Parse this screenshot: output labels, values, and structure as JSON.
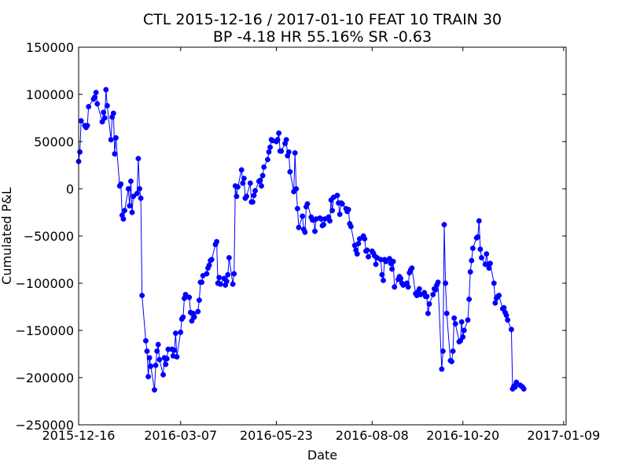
{
  "chart_data": {
    "type": "line",
    "title": "CTL 2015-12-16 / 2017-01-10 FEAT 10 TRAIN 30",
    "subtitle": "BP -4.18 HR 55.16%  SR -0.63",
    "xlabel": "Date",
    "ylabel": "Cumulated P&L",
    "xlim": [
      "2015-12-16",
      "2017-01-11"
    ],
    "ylim": [
      -250000,
      150000
    ],
    "x_ticks": [
      "2015-12-16",
      "2016-03-07",
      "2016-05-23",
      "2016-08-08",
      "2016-10-20",
      "2017-01-09"
    ],
    "y_ticks": [
      -250000,
      -200000,
      -150000,
      -100000,
      -50000,
      0,
      50000,
      100000,
      150000
    ],
    "y_tick_labels": [
      "−250000",
      "−200000",
      "−150000",
      "−100000",
      "−50000",
      "0",
      "50000",
      "100000",
      "150000"
    ],
    "grid": false,
    "series": [
      {
        "color": "#0000ff",
        "marker": "circle",
        "points": [
          [
            "2015-12-16",
            29000
          ],
          [
            "2015-12-17",
            39000
          ],
          [
            "2015-12-18",
            72000
          ],
          [
            "2015-12-21",
            67000
          ],
          [
            "2015-12-22",
            65000
          ],
          [
            "2015-12-23",
            67000
          ],
          [
            "2015-12-24",
            87000
          ],
          [
            "2015-12-28",
            95000
          ],
          [
            "2015-12-29",
            97000
          ],
          [
            "2015-12-30",
            102000
          ],
          [
            "2015-12-31",
            90000
          ],
          [
            "2016-01-04",
            71000
          ],
          [
            "2016-01-05",
            81000
          ],
          [
            "2016-01-06",
            75000
          ],
          [
            "2016-01-07",
            105000
          ],
          [
            "2016-01-08",
            88000
          ],
          [
            "2016-01-11",
            52000
          ],
          [
            "2016-01-12",
            76000
          ],
          [
            "2016-01-13",
            80000
          ],
          [
            "2016-01-14",
            37000
          ],
          [
            "2016-01-15",
            54000
          ],
          [
            "2016-01-18",
            3000
          ],
          [
            "2016-01-19",
            5000
          ],
          [
            "2016-01-20",
            -28000
          ],
          [
            "2016-01-21",
            -32000
          ],
          [
            "2016-01-22",
            -23000
          ],
          [
            "2016-01-25",
            0
          ],
          [
            "2016-01-26",
            -18000
          ],
          [
            "2016-01-27",
            8000
          ],
          [
            "2016-01-28",
            -25000
          ],
          [
            "2016-01-29",
            -8000
          ],
          [
            "2016-02-01",
            -5000
          ],
          [
            "2016-02-02",
            32000
          ],
          [
            "2016-02-03",
            0
          ],
          [
            "2016-02-04",
            -10000
          ],
          [
            "2016-02-05",
            -113000
          ],
          [
            "2016-02-08",
            -161000
          ],
          [
            "2016-02-09",
            -172000
          ],
          [
            "2016-02-10",
            -199000
          ],
          [
            "2016-02-11",
            -179000
          ],
          [
            "2016-02-12",
            -188000
          ],
          [
            "2016-02-15",
            -213000
          ],
          [
            "2016-02-16",
            -187000
          ],
          [
            "2016-02-17",
            -172000
          ],
          [
            "2016-02-18",
            -165000
          ],
          [
            "2016-02-19",
            -181000
          ],
          [
            "2016-02-22",
            -197000
          ],
          [
            "2016-02-23",
            -179000
          ],
          [
            "2016-02-24",
            -186000
          ],
          [
            "2016-02-25",
            -180000
          ],
          [
            "2016-02-26",
            -170000
          ],
          [
            "2016-02-29",
            -170000
          ],
          [
            "2016-03-01",
            -177000
          ],
          [
            "2016-03-02",
            -171000
          ],
          [
            "2016-03-03",
            -153000
          ],
          [
            "2016-03-04",
            -178000
          ],
          [
            "2016-03-07",
            -152000
          ],
          [
            "2016-03-08",
            -138000
          ],
          [
            "2016-03-09",
            -136000
          ],
          [
            "2016-03-10",
            -116000
          ],
          [
            "2016-03-11",
            -112000
          ],
          [
            "2016-03-14",
            -115000
          ],
          [
            "2016-03-15",
            -131000
          ],
          [
            "2016-03-16",
            -140000
          ],
          [
            "2016-03-17",
            -132000
          ],
          [
            "2016-03-18",
            -136000
          ],
          [
            "2016-03-21",
            -130000
          ],
          [
            "2016-03-22",
            -118000
          ],
          [
            "2016-03-23",
            -99000
          ],
          [
            "2016-03-24",
            -99000
          ],
          [
            "2016-03-25",
            -92000
          ],
          [
            "2016-03-28",
            -90000
          ],
          [
            "2016-03-29",
            -84000
          ],
          [
            "2016-03-30",
            -81000
          ],
          [
            "2016-03-31",
            -76000
          ],
          [
            "2016-04-01",
            -75000
          ],
          [
            "2016-04-04",
            -59000
          ],
          [
            "2016-04-05",
            -56000
          ],
          [
            "2016-04-06",
            -100000
          ],
          [
            "2016-04-07",
            -94000
          ],
          [
            "2016-04-08",
            -101000
          ],
          [
            "2016-04-11",
            -95000
          ],
          [
            "2016-04-12",
            -102000
          ],
          [
            "2016-04-13",
            -98000
          ],
          [
            "2016-04-14",
            -91000
          ],
          [
            "2016-04-15",
            -73000
          ],
          [
            "2016-04-18",
            -101000
          ],
          [
            "2016-04-19",
            -90000
          ],
          [
            "2016-04-20",
            3000
          ],
          [
            "2016-04-21",
            -8000
          ],
          [
            "2016-04-22",
            2000
          ],
          [
            "2016-04-25",
            20000
          ],
          [
            "2016-04-26",
            6000
          ],
          [
            "2016-04-27",
            11000
          ],
          [
            "2016-04-28",
            -10000
          ],
          [
            "2016-04-29",
            -8000
          ],
          [
            "2016-05-02",
            6000
          ],
          [
            "2016-05-03",
            -14000
          ],
          [
            "2016-05-04",
            -14000
          ],
          [
            "2016-05-05",
            -7000
          ],
          [
            "2016-05-06",
            -2000
          ],
          [
            "2016-05-09",
            8000
          ],
          [
            "2016-05-10",
            9000
          ],
          [
            "2016-05-11",
            3000
          ],
          [
            "2016-05-12",
            14000
          ],
          [
            "2016-05-13",
            23000
          ],
          [
            "2016-05-16",
            31000
          ],
          [
            "2016-05-17",
            39000
          ],
          [
            "2016-05-18",
            44000
          ],
          [
            "2016-05-19",
            52000
          ],
          [
            "2016-05-20",
            51000
          ],
          [
            "2016-05-23",
            50000
          ],
          [
            "2016-05-24",
            52000
          ],
          [
            "2016-05-25",
            59000
          ],
          [
            "2016-05-26",
            40000
          ],
          [
            "2016-05-27",
            40000
          ],
          [
            "2016-05-30",
            48000
          ],
          [
            "2016-05-31",
            52000
          ],
          [
            "2016-06-01",
            35000
          ],
          [
            "2016-06-02",
            39000
          ],
          [
            "2016-06-03",
            18000
          ],
          [
            "2016-06-06",
            -3000
          ],
          [
            "2016-06-07",
            38000
          ],
          [
            "2016-06-08",
            0
          ],
          [
            "2016-06-09",
            -21000
          ],
          [
            "2016-06-10",
            -41000
          ],
          [
            "2016-06-13",
            -29000
          ],
          [
            "2016-06-14",
            -43000
          ],
          [
            "2016-06-15",
            -46000
          ],
          [
            "2016-06-16",
            -19000
          ],
          [
            "2016-06-17",
            -16000
          ],
          [
            "2016-06-20",
            -30000
          ],
          [
            "2016-06-21",
            -33000
          ],
          [
            "2016-06-22",
            -33000
          ],
          [
            "2016-06-23",
            -45000
          ],
          [
            "2016-06-24",
            -32000
          ],
          [
            "2016-06-27",
            -31000
          ],
          [
            "2016-06-28",
            -32000
          ],
          [
            "2016-06-29",
            -39000
          ],
          [
            "2016-06-30",
            -38000
          ],
          [
            "2016-07-01",
            -32000
          ],
          [
            "2016-07-04",
            -30000
          ],
          [
            "2016-07-05",
            -34000
          ],
          [
            "2016-07-06",
            -12000
          ],
          [
            "2016-07-07",
            -23000
          ],
          [
            "2016-07-08",
            -9000
          ],
          [
            "2016-07-11",
            -7000
          ],
          [
            "2016-07-12",
            -15000
          ],
          [
            "2016-07-13",
            -27000
          ],
          [
            "2016-07-14",
            -15000
          ],
          [
            "2016-07-15",
            -16000
          ],
          [
            "2016-07-18",
            -21000
          ],
          [
            "2016-07-19",
            -24000
          ],
          [
            "2016-07-20",
            -22000
          ],
          [
            "2016-07-21",
            -37000
          ],
          [
            "2016-07-22",
            -40000
          ],
          [
            "2016-07-25",
            -60000
          ],
          [
            "2016-07-26",
            -65000
          ],
          [
            "2016-07-27",
            -69000
          ],
          [
            "2016-07-28",
            -58000
          ],
          [
            "2016-07-29",
            -53000
          ],
          [
            "2016-08-01",
            -50000
          ],
          [
            "2016-08-02",
            -53000
          ],
          [
            "2016-08-03",
            -66000
          ],
          [
            "2016-08-04",
            -65000
          ],
          [
            "2016-08-05",
            -72000
          ],
          [
            "2016-08-08",
            -66000
          ],
          [
            "2016-08-09",
            -68000
          ],
          [
            "2016-08-10",
            -71000
          ],
          [
            "2016-08-11",
            -80000
          ],
          [
            "2016-08-12",
            -73000
          ],
          [
            "2016-08-15",
            -75000
          ],
          [
            "2016-08-16",
            -91000
          ],
          [
            "2016-08-17",
            -97000
          ],
          [
            "2016-08-18",
            -75000
          ],
          [
            "2016-08-19",
            -77000
          ],
          [
            "2016-08-22",
            -74000
          ],
          [
            "2016-08-23",
            -79000
          ],
          [
            "2016-08-24",
            -85000
          ],
          [
            "2016-08-25",
            -77000
          ],
          [
            "2016-08-26",
            -104000
          ],
          [
            "2016-08-29",
            -96000
          ],
          [
            "2016-08-30",
            -93000
          ],
          [
            "2016-08-31",
            -95000
          ],
          [
            "2016-09-01",
            -100000
          ],
          [
            "2016-09-02",
            -102000
          ],
          [
            "2016-09-05",
            -100000
          ],
          [
            "2016-09-06",
            -104000
          ],
          [
            "2016-09-07",
            -89000
          ],
          [
            "2016-09-08",
            -86000
          ],
          [
            "2016-09-09",
            -84000
          ],
          [
            "2016-09-12",
            -111000
          ],
          [
            "2016-09-13",
            -113000
          ],
          [
            "2016-09-14",
            -109000
          ],
          [
            "2016-09-15",
            -106000
          ],
          [
            "2016-09-16",
            -112000
          ],
          [
            "2016-09-19",
            -110000
          ],
          [
            "2016-09-20",
            -114000
          ],
          [
            "2016-09-21",
            -114000
          ],
          [
            "2016-09-22",
            -132000
          ],
          [
            "2016-09-23",
            -122000
          ],
          [
            "2016-09-26",
            -112000
          ],
          [
            "2016-09-27",
            -106000
          ],
          [
            "2016-09-28",
            -107000
          ],
          [
            "2016-09-29",
            -102000
          ],
          [
            "2016-09-30",
            -99000
          ],
          [
            "2016-10-03",
            -191000
          ],
          [
            "2016-10-04",
            -172000
          ],
          [
            "2016-10-05",
            -38000
          ],
          [
            "2016-10-06",
            -100000
          ],
          [
            "2016-10-07",
            -132000
          ],
          [
            "2016-10-10",
            -182000
          ],
          [
            "2016-10-11",
            -183000
          ],
          [
            "2016-10-12",
            -172000
          ],
          [
            "2016-10-13",
            -137000
          ],
          [
            "2016-10-14",
            -143000
          ],
          [
            "2016-10-17",
            -162000
          ],
          [
            "2016-10-18",
            -161000
          ],
          [
            "2016-10-19",
            -141000
          ],
          [
            "2016-10-20",
            -157000
          ],
          [
            "2016-10-21",
            -150000
          ],
          [
            "2016-10-24",
            -139000
          ],
          [
            "2016-10-25",
            -117000
          ],
          [
            "2016-10-26",
            -88000
          ],
          [
            "2016-10-27",
            -76000
          ],
          [
            "2016-10-28",
            -63000
          ],
          [
            "2016-10-31",
            -52000
          ],
          [
            "2016-11-01",
            -51000
          ],
          [
            "2016-11-02",
            -34000
          ],
          [
            "2016-11-03",
            -64000
          ],
          [
            "2016-11-04",
            -73000
          ],
          [
            "2016-11-07",
            -80000
          ],
          [
            "2016-11-08",
            -69000
          ],
          [
            "2016-11-09",
            -80000
          ],
          [
            "2016-11-10",
            -84000
          ],
          [
            "2016-11-11",
            -79000
          ],
          [
            "2016-11-14",
            -100000
          ],
          [
            "2016-11-15",
            -121000
          ],
          [
            "2016-11-16",
            -116000
          ],
          [
            "2016-11-17",
            -114000
          ],
          [
            "2016-11-18",
            -113000
          ],
          [
            "2016-11-21",
            -127000
          ],
          [
            "2016-11-22",
            -126000
          ],
          [
            "2016-11-23",
            -131000
          ],
          [
            "2016-11-24",
            -134000
          ],
          [
            "2016-11-25",
            -139000
          ],
          [
            "2016-11-28",
            -149000
          ],
          [
            "2016-11-29",
            -212000
          ],
          [
            "2016-11-30",
            -209000
          ],
          [
            "2016-12-01",
            -210000
          ],
          [
            "2016-12-02",
            -205000
          ],
          [
            "2016-12-05",
            -208000
          ],
          [
            "2016-12-06",
            -209000
          ],
          [
            "2016-12-07",
            -210000
          ],
          [
            "2016-12-08",
            -212000
          ]
        ]
      }
    ]
  }
}
